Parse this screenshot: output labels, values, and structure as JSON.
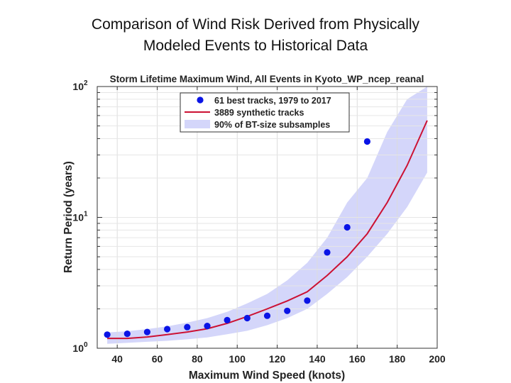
{
  "slide": {
    "title_line1": "Comparison of Wind Risk Derived from Physically",
    "title_line2": "Modeled Events to Historical Data"
  },
  "chart_data": {
    "type": "line",
    "title": "Storm Lifetime Maximum Wind, All Events in Kyoto_WP_ncep_reanal",
    "xlabel": "Maximum Wind Speed (knots)",
    "ylabel": "Return Period (years)",
    "xlim": [
      30,
      200
    ],
    "ylim": [
      1,
      100
    ],
    "yscale": "log",
    "grid": true,
    "legend_position": "top-left",
    "x_ticks": [
      40,
      60,
      80,
      100,
      120,
      140,
      160,
      180,
      200
    ],
    "y_ticks": [
      {
        "value": 1,
        "base": "10",
        "exp": "0"
      },
      {
        "value": 10,
        "base": "10",
        "exp": "1"
      },
      {
        "value": 100,
        "base": "10",
        "exp": "2"
      }
    ],
    "series": [
      {
        "name": "61 best tracks, 1979 to 2017",
        "kind": "scatter",
        "color": "#0a14e6",
        "x": [
          35,
          45,
          55,
          65,
          75,
          85,
          95,
          105,
          115,
          125,
          135,
          145,
          155,
          165
        ],
        "y": [
          1.27,
          1.29,
          1.33,
          1.4,
          1.45,
          1.48,
          1.64,
          1.7,
          1.77,
          1.93,
          2.31,
          5.4,
          8.4,
          38
        ]
      },
      {
        "name": "3889 synthetic tracks",
        "kind": "line",
        "color": "#cc1133",
        "x": [
          35,
          45,
          55,
          65,
          75,
          85,
          95,
          105,
          115,
          125,
          135,
          145,
          155,
          165,
          175,
          185,
          195
        ],
        "y": [
          1.19,
          1.19,
          1.22,
          1.27,
          1.33,
          1.41,
          1.55,
          1.75,
          2.0,
          2.3,
          2.7,
          3.6,
          5.0,
          7.5,
          13,
          25,
          55
        ]
      },
      {
        "name": "90% of BT-size subsamples",
        "kind": "band",
        "color": "#d4d6fa",
        "x": [
          35,
          45,
          55,
          65,
          75,
          85,
          95,
          105,
          115,
          125,
          135,
          145,
          155,
          165,
          175,
          185,
          195
        ],
        "lower": [
          1.08,
          1.1,
          1.12,
          1.14,
          1.17,
          1.21,
          1.28,
          1.36,
          1.5,
          1.7,
          2.0,
          2.6,
          3.5,
          5.0,
          7.5,
          12,
          22
        ],
        "upper": [
          1.32,
          1.35,
          1.4,
          1.47,
          1.57,
          1.7,
          1.9,
          2.2,
          2.6,
          3.3,
          4.5,
          7.0,
          13,
          20,
          45,
          80,
          100
        ]
      }
    ]
  }
}
